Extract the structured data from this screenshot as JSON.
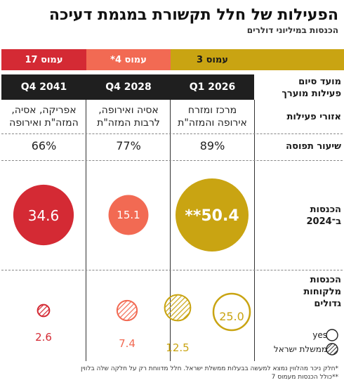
{
  "title": "הפעילות של חלל תקשורת במגמת דעיכה",
  "subtitle": "הכנסות במיליוני דולרים",
  "columns": [
    {
      "label": "עמוס 3",
      "date": "Q1 2026",
      "regions": [
        "מרכז ומזרח",
        "אירופה והמזה\"ת"
      ],
      "rate": "89%",
      "color": "#c9a412"
    },
    {
      "label": "עמוס 4*",
      "date": "Q4 2028",
      "regions": [
        "אסיה ואירופה,",
        "לרבות המזה\"ת"
      ],
      "rate": "77%",
      "color": "#f26a53"
    },
    {
      "label": "עמוס 17",
      "date": "Q4 2041",
      "regions": [
        "אפריקה, אסיה,",
        "המזה\"ת ואירופה"
      ],
      "rate": "66%",
      "color": "#d42a34"
    }
  ],
  "row_labels": {
    "end_date": [
      "מועד סיום",
      "פעילות מוערך"
    ],
    "regions": "אזורי פעילות",
    "rate": "שיעור תפוסה",
    "revenue": [
      "הכנסות",
      "ב־2024"
    ],
    "big_clients": [
      "הכנסות",
      "מלקוחות",
      "גדולים"
    ]
  },
  "legend": {
    "yes": "yes",
    "gov": "ממשלת ישראל"
  },
  "footnotes": [
    "*חלק ניכר מהלווין נמצא למעשה בבעלות ממשלת ישראל. חלל מדווחת רק על חלקה שלה בלווין",
    "**כולל הכנסות מעמוס 7"
  ],
  "chart_data": {
    "type": "table",
    "title": "הפעילות של חלל תקשורת במגמת דעיכה",
    "subtitle": "הכנסות במיליוני דולרים",
    "categories": [
      "עמוס 3",
      "עמוס 4*",
      "עמוס 17"
    ],
    "end_dates": [
      "Q1 2026",
      "Q4 2028",
      "Q4 2041"
    ],
    "occupancy_rate_pct": [
      89,
      77,
      66
    ],
    "revenue_2024": {
      "values": [
        50.4,
        15.1,
        34.6
      ],
      "labels": [
        "**50.4",
        "15.1",
        "34.6"
      ]
    },
    "big_clients_revenue": {
      "series": [
        {
          "name": "yes",
          "values": [
            25.0,
            null,
            null
          ],
          "labels": [
            "25.0",
            "",
            ""
          ]
        },
        {
          "name": "ממשלת ישראל",
          "values": [
            12.5,
            7.4,
            2.6
          ],
          "labels": [
            "12.5",
            "7.4",
            "2.6"
          ]
        }
      ]
    }
  }
}
